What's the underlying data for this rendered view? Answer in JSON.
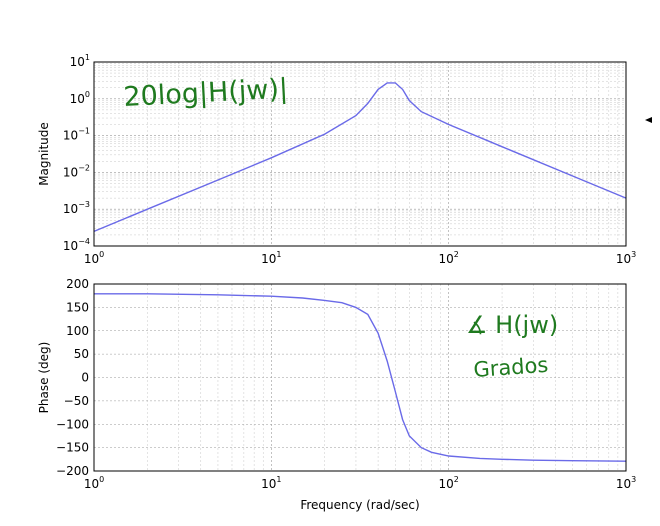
{
  "annotations": {
    "magnitude_note": "20log|H(jw)|",
    "phase_note_line1": "∡ H(jw)",
    "phase_note_line2": "Grados"
  },
  "chart_data": [
    {
      "type": "line",
      "panel": "magnitude",
      "xscale": "log",
      "yscale": "log",
      "xlim": [
        1,
        1000
      ],
      "ylim": [
        0.0001,
        10
      ],
      "ylabel": "Magnitude",
      "xlabel": "",
      "grid": true,
      "x_ticks": [
        1,
        10,
        100,
        1000
      ],
      "y_ticks": [
        0.0001,
        0.001,
        0.01,
        0.1,
        1,
        10
      ],
      "series": [
        {
          "x": [
            1,
            2,
            5,
            10,
            20,
            30,
            35,
            40,
            45,
            50,
            55,
            60,
            70,
            100,
            200,
            500,
            1000
          ],
          "y": [
            0.00025,
            0.001,
            0.0062,
            0.025,
            0.11,
            0.35,
            0.75,
            1.8,
            2.7,
            2.7,
            1.8,
            0.9,
            0.45,
            0.2,
            0.05,
            0.008,
            0.002
          ]
        }
      ]
    },
    {
      "type": "line",
      "panel": "phase",
      "xscale": "log",
      "xlim": [
        1,
        1000
      ],
      "ylim": [
        -200,
        200
      ],
      "ylabel": "Phase (deg)",
      "xlabel": "Frequency (rad/sec)",
      "grid": true,
      "x_ticks": [
        1,
        10,
        100,
        1000
      ],
      "y_ticks": [
        200,
        150,
        100,
        50,
        0,
        -50,
        -100,
        -150,
        -200
      ],
      "series": [
        {
          "x": [
            1,
            2,
            5,
            10,
            15,
            20,
            25,
            30,
            35,
            40,
            45,
            50,
            55,
            60,
            70,
            80,
            100,
            150,
            200,
            300,
            500,
            1000
          ],
          "y": [
            179,
            179,
            177,
            174,
            170,
            165,
            160,
            150,
            135,
            95,
            35,
            -30,
            -90,
            -125,
            -150,
            -160,
            -168,
            -173,
            -175,
            -177,
            -178,
            -179
          ]
        }
      ]
    }
  ]
}
